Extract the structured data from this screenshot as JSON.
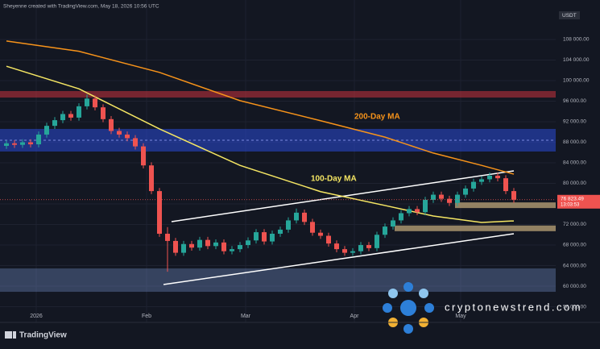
{
  "chart_data": {
    "type": "candlestick",
    "header": "Sheyenne created with TradingView.com, May 18, 2026 10:56 UTC",
    "currency": "USDT",
    "footer": "TradingView",
    "watermark": "cryptonewstrend.com",
    "up_color": "#26a69a",
    "down_color": "#ef5350",
    "open": [
      87300,
      87800,
      87500,
      88000,
      87600,
      89500,
      91200,
      92300,
      93500,
      92800,
      95000,
      96500,
      94800,
      92500,
      90200,
      89500,
      88800,
      87200,
      83500,
      78500,
      70200,
      68800,
      66500,
      68200,
      67500,
      69000,
      67800,
      68500,
      66800,
      67200,
      68000,
      68900,
      70500,
      68700,
      70200,
      71000,
      72800,
      74300,
      72500,
      70400,
      69800,
      68300,
      67200,
      66500,
      66800,
      68000,
      67400,
      70000,
      71600,
      72800,
      74200,
      75000,
      74400,
      76800,
      77800,
      77000,
      76200,
      77800,
      79000,
      80300,
      80800,
      81500,
      81000,
      78500
    ],
    "high": [
      88400,
      88400,
      88600,
      88600,
      90100,
      91800,
      92900,
      94100,
      94100,
      95600,
      97300,
      97100,
      95400,
      93100,
      90800,
      90100,
      89400,
      87800,
      84100,
      79100,
      71500,
      69400,
      68800,
      68800,
      69600,
      69600,
      69100,
      69100,
      67800,
      68600,
      69500,
      71100,
      71100,
      70800,
      71600,
      73400,
      75100,
      74900,
      73100,
      71000,
      70400,
      68900,
      67800,
      67400,
      68600,
      68600,
      70600,
      72200,
      73400,
      74800,
      75600,
      75600,
      77400,
      78400,
      78400,
      77600,
      78400,
      79600,
      80900,
      81400,
      82100,
      82100,
      81600,
      79100
    ],
    "low": [
      86700,
      86900,
      86900,
      87000,
      87000,
      88900,
      90600,
      91700,
      92200,
      92200,
      94400,
      94200,
      91900,
      89600,
      88900,
      88200,
      86600,
      82900,
      77900,
      69600,
      62800,
      65900,
      65900,
      66900,
      66900,
      67200,
      67200,
      66200,
      66200,
      66600,
      67400,
      68300,
      68100,
      68100,
      69600,
      70400,
      72200,
      71900,
      69800,
      69200,
      67700,
      66600,
      65900,
      65900,
      66200,
      66800,
      66800,
      69400,
      71000,
      72200,
      73600,
      73800,
      73800,
      76200,
      76400,
      75600,
      75600,
      77200,
      78400,
      79700,
      80200,
      80400,
      77900,
      76200
    ],
    "close": [
      87800,
      87500,
      88000,
      87600,
      89500,
      91200,
      92300,
      93500,
      92800,
      95000,
      96500,
      94800,
      92500,
      90200,
      89500,
      88800,
      87200,
      83500,
      78500,
      70200,
      68800,
      66500,
      68200,
      67500,
      69000,
      67800,
      68500,
      66800,
      67200,
      68000,
      68900,
      70500,
      68700,
      70200,
      71000,
      72800,
      74300,
      72500,
      70400,
      69800,
      68300,
      67200,
      66500,
      66800,
      68000,
      67400,
      70000,
      71600,
      72800,
      74200,
      75000,
      74400,
      76800,
      77800,
      77000,
      76200,
      77800,
      79000,
      80300,
      80800,
      81500,
      81000,
      78500,
      76823.49
    ],
    "last_price": {
      "value": 76823.49,
      "label": "76 823.49"
    },
    "countdown": "13:03:53",
    "moving_averages": [
      {
        "name": "200-Day MA",
        "color": "#f7931a",
        "x": [
          0,
          9,
          19,
          29,
          39,
          47,
          53,
          59,
          63
        ],
        "values": [
          107700,
          105700,
          101600,
          96100,
          92200,
          89000,
          85900,
          83500,
          81800
        ]
      },
      {
        "name": "100-Day MA",
        "color": "#f5e663",
        "x": [
          0,
          9,
          19,
          29,
          39,
          47,
          53,
          59,
          63
        ],
        "values": [
          102800,
          98400,
          90600,
          83500,
          78400,
          75700,
          73650,
          72400,
          72700
        ]
      }
    ],
    "zones": [
      {
        "ymin": 96700,
        "ymax": 97970,
        "color": "rgba(200,50,60,0.55)"
      },
      {
        "ymin": 86200,
        "ymax": 90600,
        "color": "rgba(40,70,200,0.6)"
      },
      {
        "ymin": 75200,
        "ymax": 76300,
        "color": "rgba(190,165,120,0.75)",
        "from": 55.7
      },
      {
        "ymin": 70700,
        "ymax": 71800,
        "color": "rgba(190,165,120,0.75)",
        "from": 48.2
      },
      {
        "ymin": 58900,
        "ymax": 63450,
        "color": "rgba(120,150,210,0.35)"
      }
    ],
    "xlim": [
      -0.8,
      68.2
    ],
    "xticks": [
      {
        "value": 3.7,
        "label": "2026"
      },
      {
        "value": 17.4,
        "label": "Feb"
      },
      {
        "value": 29.7,
        "label": "Mar"
      },
      {
        "value": 43.2,
        "label": "Apr"
      },
      {
        "value": 56.4,
        "label": "May"
      }
    ],
    "ylim": [
      55300,
      112550
    ],
    "yticks": [
      {
        "value": 108000,
        "label": "108 000.00"
      },
      {
        "value": 104000,
        "label": "104 000.00"
      },
      {
        "value": 100000,
        "label": "100 000.00"
      },
      {
        "value": 96000,
        "label": "96 000.00"
      },
      {
        "value": 92000,
        "label": "92 000.00"
      },
      {
        "value": 88000,
        "label": "88 000.00"
      },
      {
        "value": 84000,
        "label": "84 000.00"
      },
      {
        "value": 80000,
        "label": "80 000.00"
      },
      {
        "value": 76000,
        "label": "76 000.00"
      },
      {
        "value": 72000,
        "label": "72 000.00"
      },
      {
        "value": 68000,
        "label": "68 000.00"
      },
      {
        "value": 64000,
        "label": "64 000.00"
      },
      {
        "value": 60000,
        "label": "60 000.00"
      },
      {
        "value": 56000,
        "label": "56 000.00"
      }
    ]
  }
}
